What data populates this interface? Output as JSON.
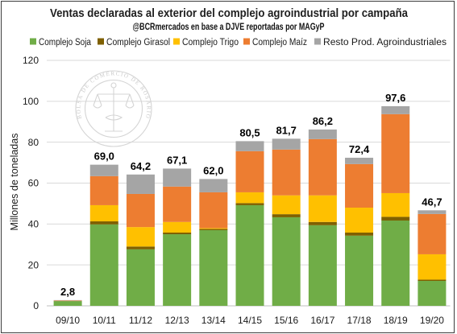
{
  "chart_data": {
    "type": "bar",
    "stacked": true,
    "title": "Ventas declaradas al exterior del complejo agroindustrial por campaña",
    "subtitle": "@BCRmercados en base a DJVE reportadas por MAGyP",
    "ylabel": "Millones de toneladas",
    "ylim": [
      0,
      120
    ],
    "yticks": [
      0,
      20,
      40,
      60,
      80,
      100,
      120
    ],
    "grid": true,
    "legend_position": "top",
    "categories": [
      "09/10",
      "10/11",
      "11/12",
      "12/13",
      "13/14",
      "14/15",
      "15/16",
      "16/17",
      "17/18",
      "18/19",
      "19/20"
    ],
    "series": [
      {
        "name": "Complejo Soja",
        "color": "#70AD47",
        "values": [
          2.3,
          39.8,
          27.6,
          35.0,
          37.0,
          49.2,
          43.3,
          39.4,
          34.3,
          41.7,
          12.2
        ]
      },
      {
        "name": "Complejo Girasol",
        "color": "#7F6000",
        "values": [
          0.1,
          1.5,
          1.4,
          0.8,
          0.6,
          1.0,
          1.5,
          1.6,
          1.5,
          1.8,
          0.6
        ]
      },
      {
        "name": "Complejo Trigo",
        "color": "#FFC000",
        "values": [
          0.0,
          7.9,
          9.5,
          5.2,
          0.4,
          5.3,
          9.2,
          13.0,
          12.2,
          11.6,
          12.4
        ]
      },
      {
        "name": "Complejo Maíz",
        "color": "#ED7D31",
        "values": [
          0.2,
          14.2,
          16.2,
          17.3,
          17.5,
          20.1,
          22.4,
          27.5,
          21.3,
          38.6,
          19.7
        ]
      },
      {
        "name": "Resto Prod. Agroindustriales",
        "color": "#A5A5A5",
        "values": [
          0.2,
          5.6,
          9.5,
          8.8,
          6.5,
          4.9,
          5.3,
          4.7,
          3.1,
          3.9,
          1.8
        ]
      }
    ],
    "data_labels": [
      "2,8",
      "69,0",
      "64,2",
      "67,1",
      "62,0",
      "80,5",
      "81,7",
      "86,2",
      "72,4",
      "97,6",
      "46,7"
    ]
  },
  "watermark": {
    "text": "BOLSA DE COMERCIO DE ROSARIO"
  }
}
